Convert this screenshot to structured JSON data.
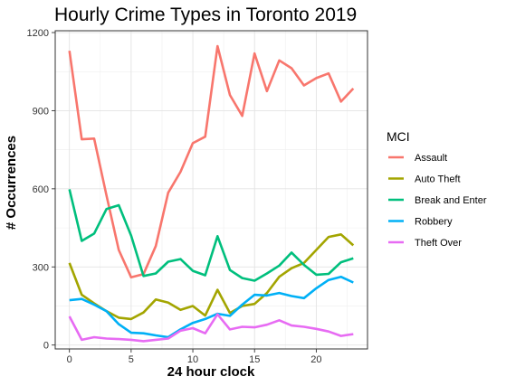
{
  "chart_data": {
    "type": "line",
    "title": "Hourly Crime Types in Toronto 2019",
    "xlabel": "24 hour clock",
    "ylabel": "# Occurrences",
    "xlim": [
      -1.15,
      24.15
    ],
    "ylim": [
      -15,
      1207
    ],
    "x_ticks": [
      0,
      5,
      10,
      15,
      20
    ],
    "y_ticks": [
      0,
      300,
      600,
      900,
      1200
    ],
    "grid": true,
    "legend_title": "MCI",
    "legend_position": "right",
    "x": [
      0,
      1,
      2,
      3,
      4,
      5,
      6,
      7,
      8,
      9,
      10,
      11,
      12,
      13,
      14,
      15,
      16,
      17,
      18,
      19,
      20,
      21,
      22,
      23
    ],
    "series": [
      {
        "name": "Assault",
        "color": "#F8766D",
        "values": [
          1130,
          790,
          793,
          575,
          365,
          260,
          272,
          380,
          585,
          665,
          775,
          800,
          1148,
          960,
          880,
          1120,
          975,
          1093,
          1063,
          997,
          1025,
          1043,
          935,
          985
        ]
      },
      {
        "name": "Auto Theft",
        "color": "#A3A500",
        "values": [
          315,
          193,
          160,
          130,
          105,
          100,
          125,
          175,
          163,
          135,
          150,
          113,
          212,
          123,
          150,
          158,
          200,
          262,
          295,
          315,
          365,
          415,
          425,
          383
        ]
      },
      {
        "name": "Break and Enter",
        "color": "#00BF7D",
        "values": [
          598,
          400,
          428,
          522,
          537,
          420,
          265,
          275,
          320,
          330,
          285,
          268,
          418,
          288,
          257,
          247,
          275,
          305,
          355,
          308,
          270,
          273,
          318,
          333
        ]
      },
      {
        "name": "Robbery",
        "color": "#00B0F6",
        "values": [
          172,
          177,
          155,
          130,
          80,
          47,
          45,
          37,
          30,
          60,
          85,
          100,
          120,
          112,
          155,
          193,
          190,
          200,
          188,
          180,
          218,
          250,
          262,
          240
        ]
      },
      {
        "name": "Theft Over",
        "color": "#E76BF3",
        "values": [
          110,
          20,
          30,
          25,
          23,
          20,
          15,
          20,
          25,
          55,
          65,
          45,
          118,
          60,
          70,
          68,
          78,
          95,
          75,
          70,
          62,
          52,
          35,
          42
        ]
      }
    ]
  }
}
